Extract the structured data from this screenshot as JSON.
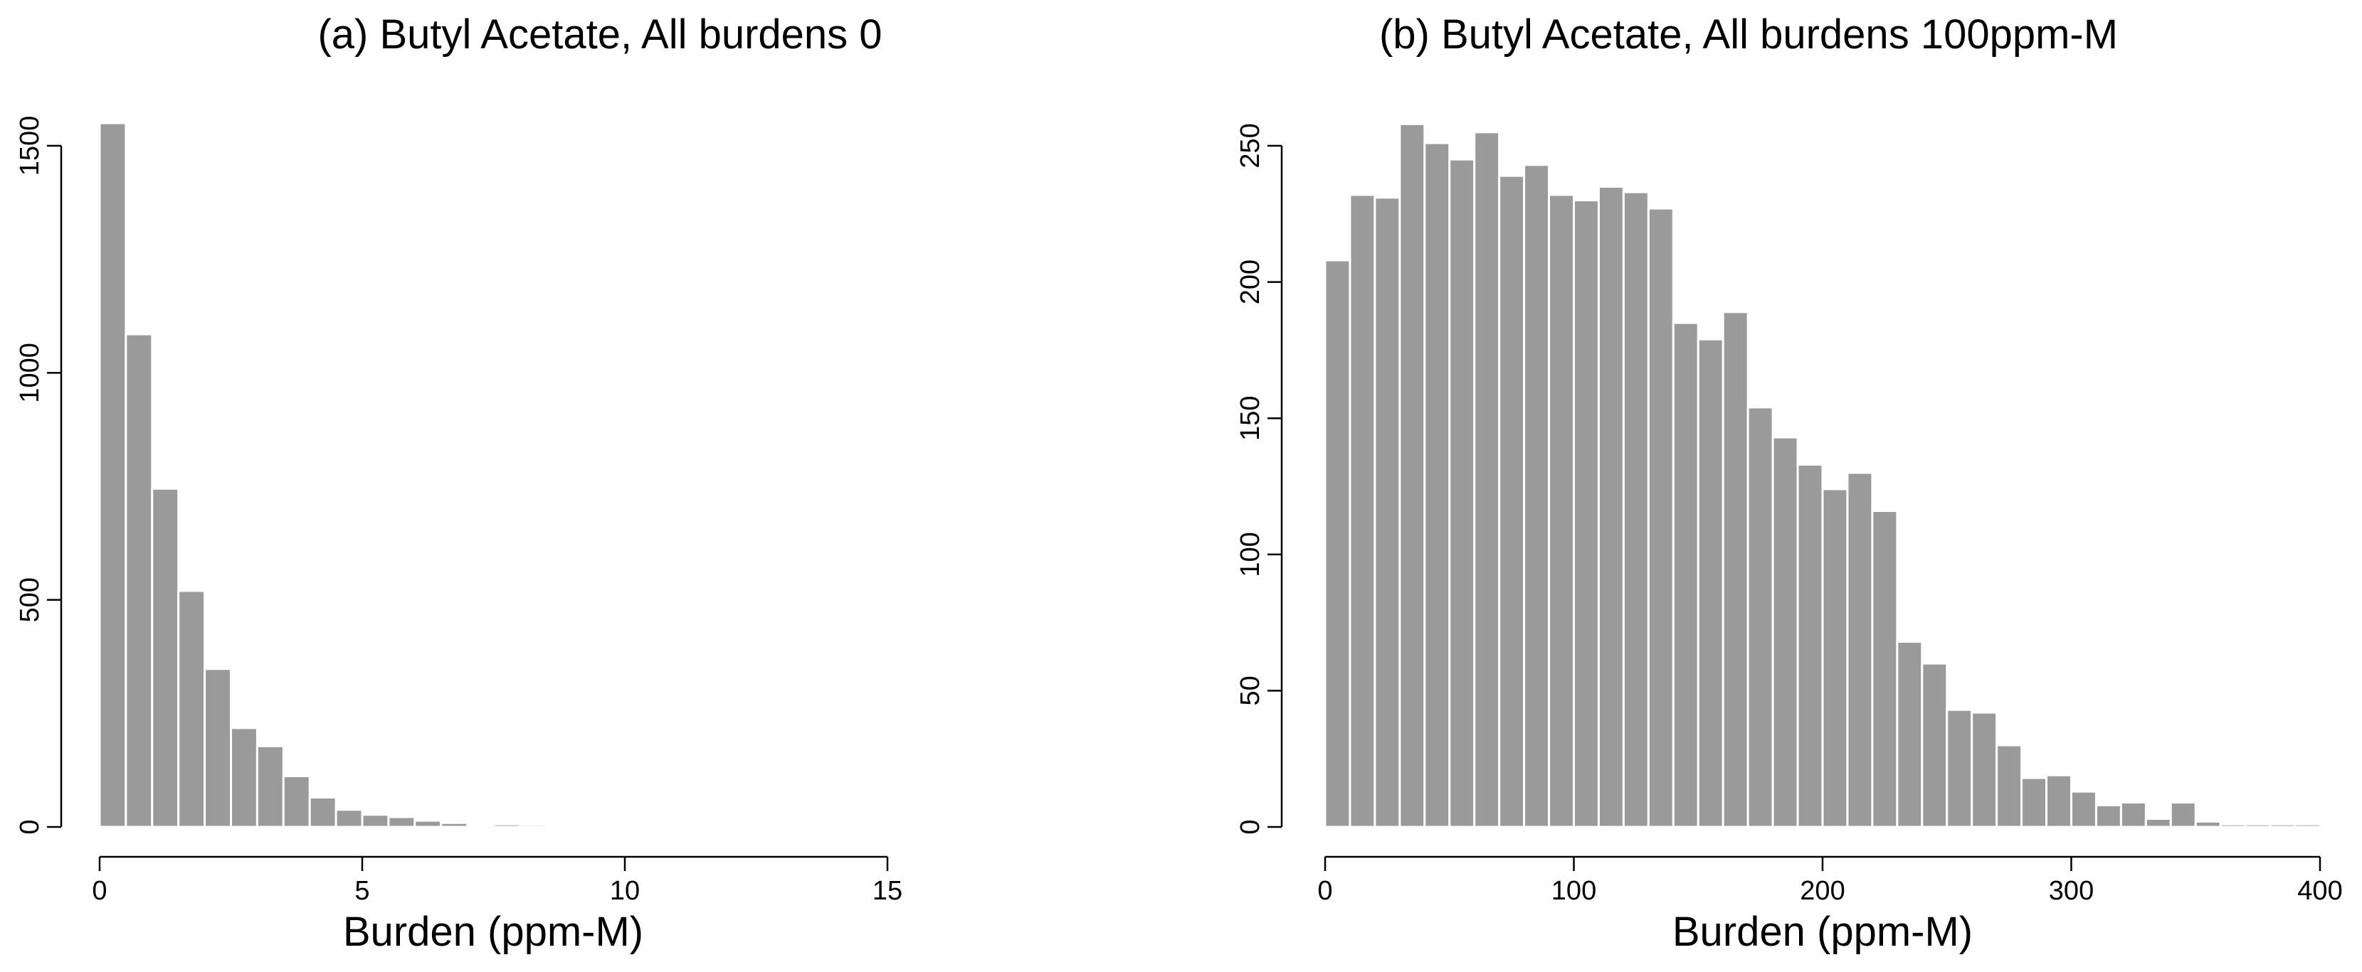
{
  "chart_data": [
    {
      "type": "bar",
      "title": "(a) Butyl Acetate, All burdens 0",
      "xlabel": "Burden (ppm-M)",
      "ylabel": "",
      "xlim": [
        0,
        15
      ],
      "ylim": [
        0,
        1500
      ],
      "xticks": [
        0,
        5,
        10,
        15
      ],
      "yticks": [
        0,
        500,
        1000,
        1500
      ],
      "grid": false,
      "bin_edges": [
        0,
        0.5,
        1,
        1.5,
        2,
        2.5,
        3,
        3.5,
        4,
        4.5,
        5,
        5.5,
        6,
        6.5,
        7,
        7.5,
        8,
        8.5,
        9,
        9.5,
        10,
        10.5
      ],
      "values": [
        1550,
        1085,
        745,
        520,
        348,
        218,
        178,
        112,
        65,
        38,
        27,
        22,
        14,
        9,
        4,
        6,
        5,
        0,
        0,
        4,
        4
      ]
    },
    {
      "type": "bar",
      "title": "(b) Butyl Acetate, All burdens 100ppm-M",
      "xlabel": "Burden (ppm-M)",
      "ylabel": "",
      "xlim": [
        0,
        400
      ],
      "ylim": [
        0,
        250
      ],
      "xticks": [
        0,
        100,
        200,
        300,
        400
      ],
      "yticks": [
        0,
        50,
        100,
        150,
        200,
        250
      ],
      "grid": false,
      "bin_edges": [
        0,
        10,
        20,
        30,
        40,
        50,
        60,
        70,
        80,
        90,
        100,
        110,
        120,
        130,
        140,
        150,
        160,
        170,
        180,
        190,
        200,
        210,
        220,
        230,
        240,
        250,
        260,
        270,
        280,
        290,
        300,
        310,
        320,
        330,
        340,
        350,
        360,
        370,
        380,
        390,
        400
      ],
      "values": [
        208,
        232,
        231,
        258,
        251,
        245,
        255,
        239,
        243,
        232,
        230,
        235,
        233,
        227,
        185,
        179,
        189,
        154,
        143,
        133,
        124,
        130,
        116,
        68,
        60,
        43,
        42,
        30,
        18,
        19,
        13,
        8,
        9,
        3,
        9,
        2,
        1,
        1,
        1,
        1
      ]
    }
  ]
}
